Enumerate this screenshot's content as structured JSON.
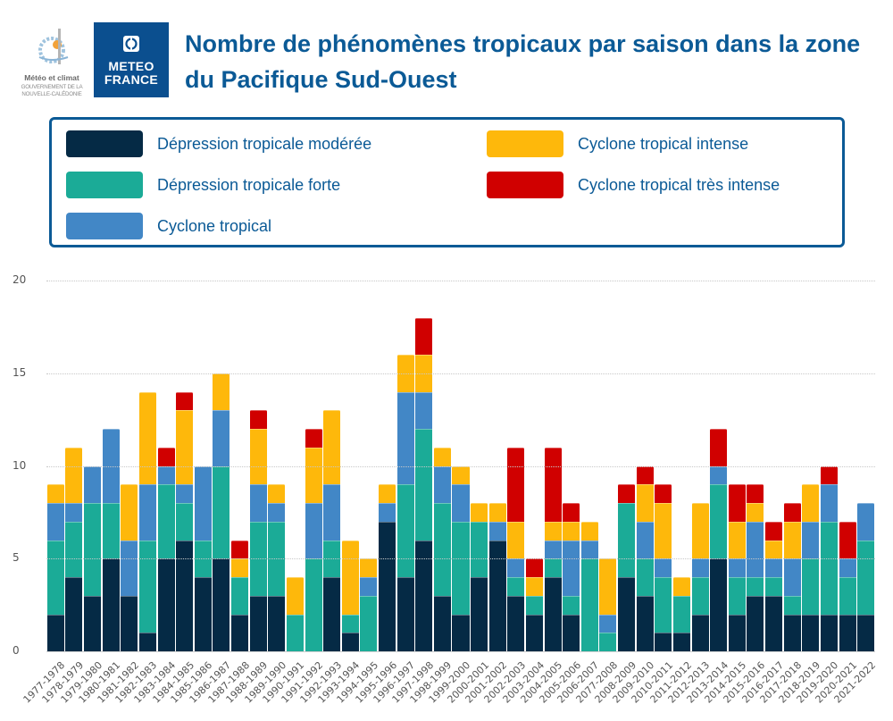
{
  "header": {
    "title": "Nombre de phénomènes tropicaux par saison dans la zone du Pacifique Sud-Ouest",
    "logo_nc": {
      "line1": "Météo et climat",
      "line2": "GOUVERNEMENT DE LA",
      "line3": "NOUVELLE-CALÉDONIE"
    },
    "logo_mf": {
      "line1": "METEO",
      "line2": "FRANCE",
      "color": "#0b4f8f"
    }
  },
  "legend": {
    "items": [
      {
        "label": "Dépression tropicale modérée",
        "color": "#052a45"
      },
      {
        "label": "Dépression tropicale forte",
        "color": "#1bab97"
      },
      {
        "label": "Cyclone tropical",
        "color": "#4287c6"
      },
      {
        "label": "Cyclone tropical intense",
        "color": "#feb80b"
      },
      {
        "label": "Cyclone tropical très intense",
        "color": "#d00000"
      }
    ]
  },
  "chart_data": {
    "type": "bar",
    "stacked": true,
    "title": "Nombre de phénomènes tropicaux par saison dans la zone du Pacifique Sud-Ouest",
    "xlabel": "",
    "ylabel": "",
    "ylim": [
      0,
      20
    ],
    "yticks": [
      0,
      5,
      10,
      15,
      20
    ],
    "grid": true,
    "legend_position": "top",
    "categories": [
      "1977-1978",
      "1978-1979",
      "1979-1980",
      "1980-1981",
      "1981-1982",
      "1982-1983",
      "1983-1984",
      "1984-1985",
      "1985-1986",
      "1986-1987",
      "1987-1988",
      "1988-1989",
      "1989-1990",
      "1990-1991",
      "1991-1992",
      "1992-1993",
      "1993-1994",
      "1994-1995",
      "1995-1996",
      "1996-1997",
      "1997-1998",
      "1998-1999",
      "1999-2000",
      "2000-2001",
      "2001-2002",
      "2002-2003",
      "2003-2004",
      "2004-2005",
      "2005-2006",
      "2006-2007",
      "2077-2008",
      "2008-2009",
      "2009-2010",
      "2010-2011",
      "2011-2012",
      "2012-2013",
      "2013-2014",
      "2014-2015",
      "2015-2016",
      "2016-2017",
      "2017-2018",
      "2018-2019",
      "2019-2020",
      "2020-2021",
      "2021-2022"
    ],
    "series": [
      {
        "name": "Dépression tropicale modérée",
        "color": "#052a45",
        "values": [
          2,
          4,
          3,
          5,
          3,
          1,
          5,
          6,
          4,
          5,
          2,
          3,
          3,
          0,
          0,
          4,
          1,
          0,
          7,
          4,
          6,
          3,
          2,
          4,
          6,
          3,
          2,
          4,
          2,
          0,
          0,
          4,
          3,
          1,
          1,
          2,
          5,
          2,
          3,
          3,
          2,
          2,
          2,
          2,
          2
        ]
      },
      {
        "name": "Dépression tropicale forte",
        "color": "#1bab97",
        "values": [
          4,
          3,
          5,
          3,
          0,
          5,
          4,
          2,
          2,
          5,
          2,
          4,
          4,
          2,
          5,
          2,
          1,
          3,
          0,
          5,
          6,
          5,
          5,
          3,
          0,
          1,
          1,
          1,
          1,
          5,
          1,
          4,
          2,
          3,
          2,
          2,
          4,
          2,
          1,
          1,
          1,
          3,
          5,
          2,
          4
        ]
      },
      {
        "name": "Cyclone tropical",
        "color": "#4287c6",
        "values": [
          2,
          1,
          2,
          4,
          3,
          3,
          1,
          1,
          4,
          3,
          0,
          2,
          1,
          0,
          3,
          3,
          0,
          1,
          1,
          5,
          2,
          2,
          2,
          0,
          1,
          1,
          0,
          1,
          3,
          1,
          1,
          0,
          2,
          1,
          0,
          1,
          1,
          1,
          3,
          1,
          2,
          2,
          2,
          1,
          2
        ]
      },
      {
        "name": "Cyclone tropical intense",
        "color": "#feb80b",
        "values": [
          1,
          3,
          0,
          0,
          3,
          5,
          0,
          4,
          0,
          2,
          1,
          3,
          1,
          2,
          3,
          4,
          4,
          1,
          1,
          2,
          2,
          1,
          1,
          1,
          1,
          2,
          1,
          1,
          1,
          1,
          3,
          0,
          2,
          3,
          1,
          3,
          0,
          2,
          1,
          1,
          2,
          2,
          0,
          0,
          0
        ]
      },
      {
        "name": "Cyclone tropical très intense",
        "color": "#d00000",
        "values": [
          0,
          0,
          0,
          0,
          0,
          0,
          1,
          1,
          0,
          0,
          1,
          1,
          0,
          0,
          1,
          0,
          0,
          0,
          0,
          0,
          2,
          0,
          0,
          0,
          0,
          4,
          1,
          4,
          1,
          0,
          0,
          1,
          1,
          1,
          0,
          0,
          2,
          2,
          1,
          1,
          1,
          0,
          1,
          2,
          0
        ]
      }
    ],
    "totals": [
      9,
      11,
      10,
      12,
      9,
      14,
      11,
      14,
      10,
      15,
      6,
      13,
      9,
      4,
      12,
      13,
      6,
      5,
      9,
      16,
      18,
      11,
      10,
      8,
      8,
      11,
      5,
      11,
      8,
      7,
      5,
      9,
      10,
      9,
      4,
      8,
      12,
      9,
      9,
      7,
      8,
      9,
      10,
      7,
      8
    ]
  }
}
